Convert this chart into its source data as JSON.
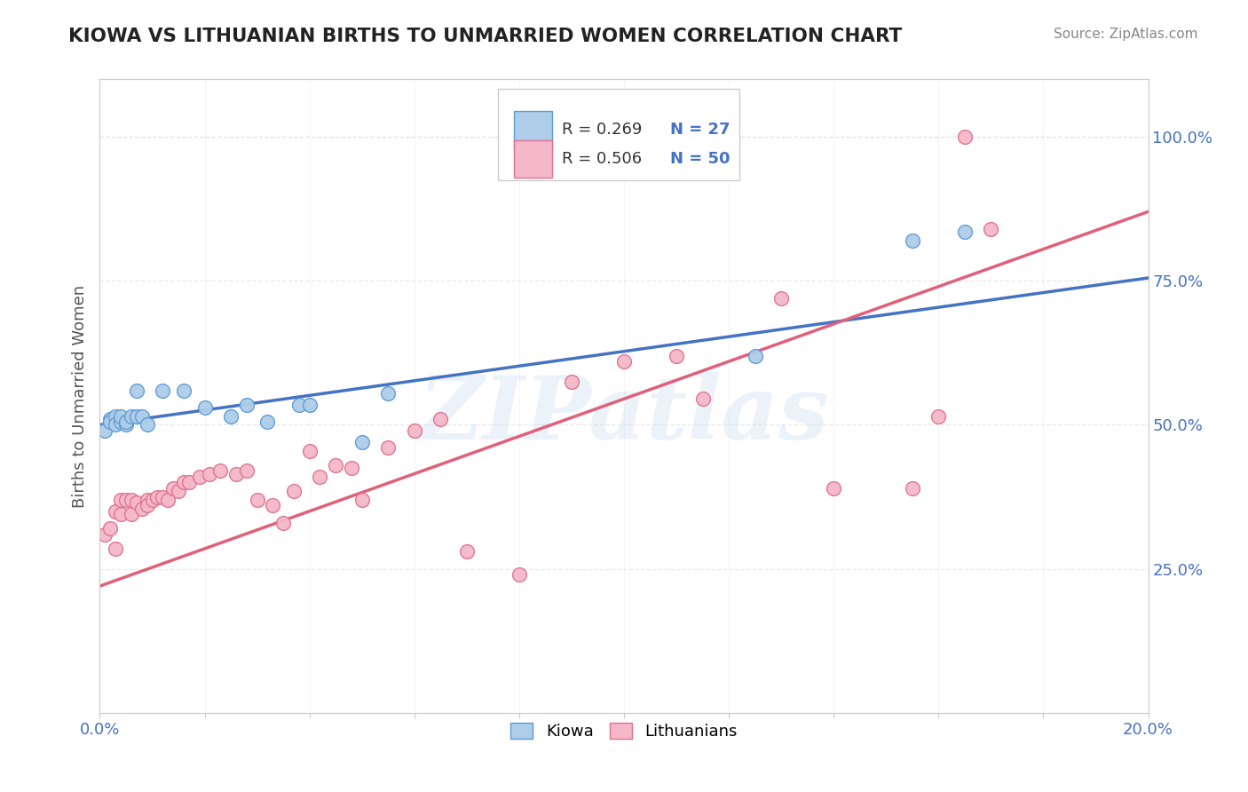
{
  "title": "KIOWA VS LITHUANIAN BIRTHS TO UNMARRIED WOMEN CORRELATION CHART",
  "source": "Source: ZipAtlas.com",
  "ylabel": "Births to Unmarried Women",
  "xlim": [
    0.0,
    0.2
  ],
  "ylim": [
    0.0,
    1.1
  ],
  "xtick_vals": [
    0.0,
    0.02,
    0.04,
    0.06,
    0.08,
    0.1,
    0.12,
    0.14,
    0.16,
    0.18,
    0.2
  ],
  "xtick_labels": [
    "0.0%",
    "",
    "",
    "",
    "",
    "",
    "",
    "",
    "",
    "",
    "20.0%"
  ],
  "yticks_right": [
    0.25,
    0.5,
    0.75,
    1.0
  ],
  "ytick_labels_right": [
    "25.0%",
    "50.0%",
    "75.0%",
    "100.0%"
  ],
  "kiowa_color": "#aecde8",
  "kiowa_edge_color": "#5b9bd5",
  "lithuanian_color": "#f4b8c8",
  "lithuanian_edge_color": "#e07090",
  "kiowa_line_color": "#4472c4",
  "lithuanian_line_color": "#e0607a",
  "legend_r1": "R = 0.269",
  "legend_n1": "N = 27",
  "legend_r2": "R = 0.506",
  "legend_n2": "N = 50",
  "legend_label1": "Kiowa",
  "legend_label2": "Lithuanians",
  "watermark": "ZIPatlas",
  "background_color": "#ffffff",
  "grid_color": "#e8e8e8",
  "grid_style": "--",
  "title_color": "#222222",
  "axis_label_color": "#555555",
  "tick_color": "#4472c4",
  "watermark_color": "#c8daf0",
  "watermark_alpha": 0.35,
  "kiowa_scatter_x": [
    0.001,
    0.002,
    0.002,
    0.003,
    0.003,
    0.004,
    0.004,
    0.005,
    0.005,
    0.006,
    0.007,
    0.007,
    0.008,
    0.009,
    0.012,
    0.016,
    0.02,
    0.025,
    0.028,
    0.032,
    0.038,
    0.04,
    0.05,
    0.055,
    0.125,
    0.155,
    0.165
  ],
  "kiowa_scatter_y": [
    0.49,
    0.51,
    0.505,
    0.515,
    0.5,
    0.505,
    0.515,
    0.5,
    0.505,
    0.515,
    0.56,
    0.515,
    0.515,
    0.5,
    0.56,
    0.56,
    0.53,
    0.515,
    0.535,
    0.505,
    0.535,
    0.535,
    0.47,
    0.555,
    0.62,
    0.82,
    0.835
  ],
  "lithuanian_scatter_x": [
    0.001,
    0.002,
    0.003,
    0.003,
    0.004,
    0.004,
    0.005,
    0.006,
    0.006,
    0.007,
    0.008,
    0.009,
    0.009,
    0.01,
    0.011,
    0.012,
    0.013,
    0.014,
    0.015,
    0.016,
    0.017,
    0.019,
    0.021,
    0.023,
    0.026,
    0.028,
    0.03,
    0.033,
    0.035,
    0.037,
    0.04,
    0.042,
    0.045,
    0.048,
    0.05,
    0.055,
    0.06,
    0.065,
    0.07,
    0.08,
    0.09,
    0.1,
    0.11,
    0.115,
    0.13,
    0.14,
    0.155,
    0.16,
    0.165,
    0.17
  ],
  "lithuanian_scatter_y": [
    0.31,
    0.32,
    0.35,
    0.285,
    0.345,
    0.37,
    0.37,
    0.345,
    0.37,
    0.365,
    0.355,
    0.37,
    0.36,
    0.37,
    0.375,
    0.375,
    0.37,
    0.39,
    0.385,
    0.4,
    0.4,
    0.41,
    0.415,
    0.42,
    0.415,
    0.42,
    0.37,
    0.36,
    0.33,
    0.385,
    0.455,
    0.41,
    0.43,
    0.425,
    0.37,
    0.46,
    0.49,
    0.51,
    0.28,
    0.24,
    0.575,
    0.61,
    0.62,
    0.545,
    0.72,
    0.39,
    0.39,
    0.515,
    1.0,
    0.84
  ],
  "kiowa_line_x0": 0.0,
  "kiowa_line_y0": 0.5,
  "kiowa_line_x1": 0.2,
  "kiowa_line_y1": 0.755,
  "lith_line_x0": 0.0,
  "lith_line_y0": 0.22,
  "lith_line_x1": 0.2,
  "lith_line_y1": 0.87
}
